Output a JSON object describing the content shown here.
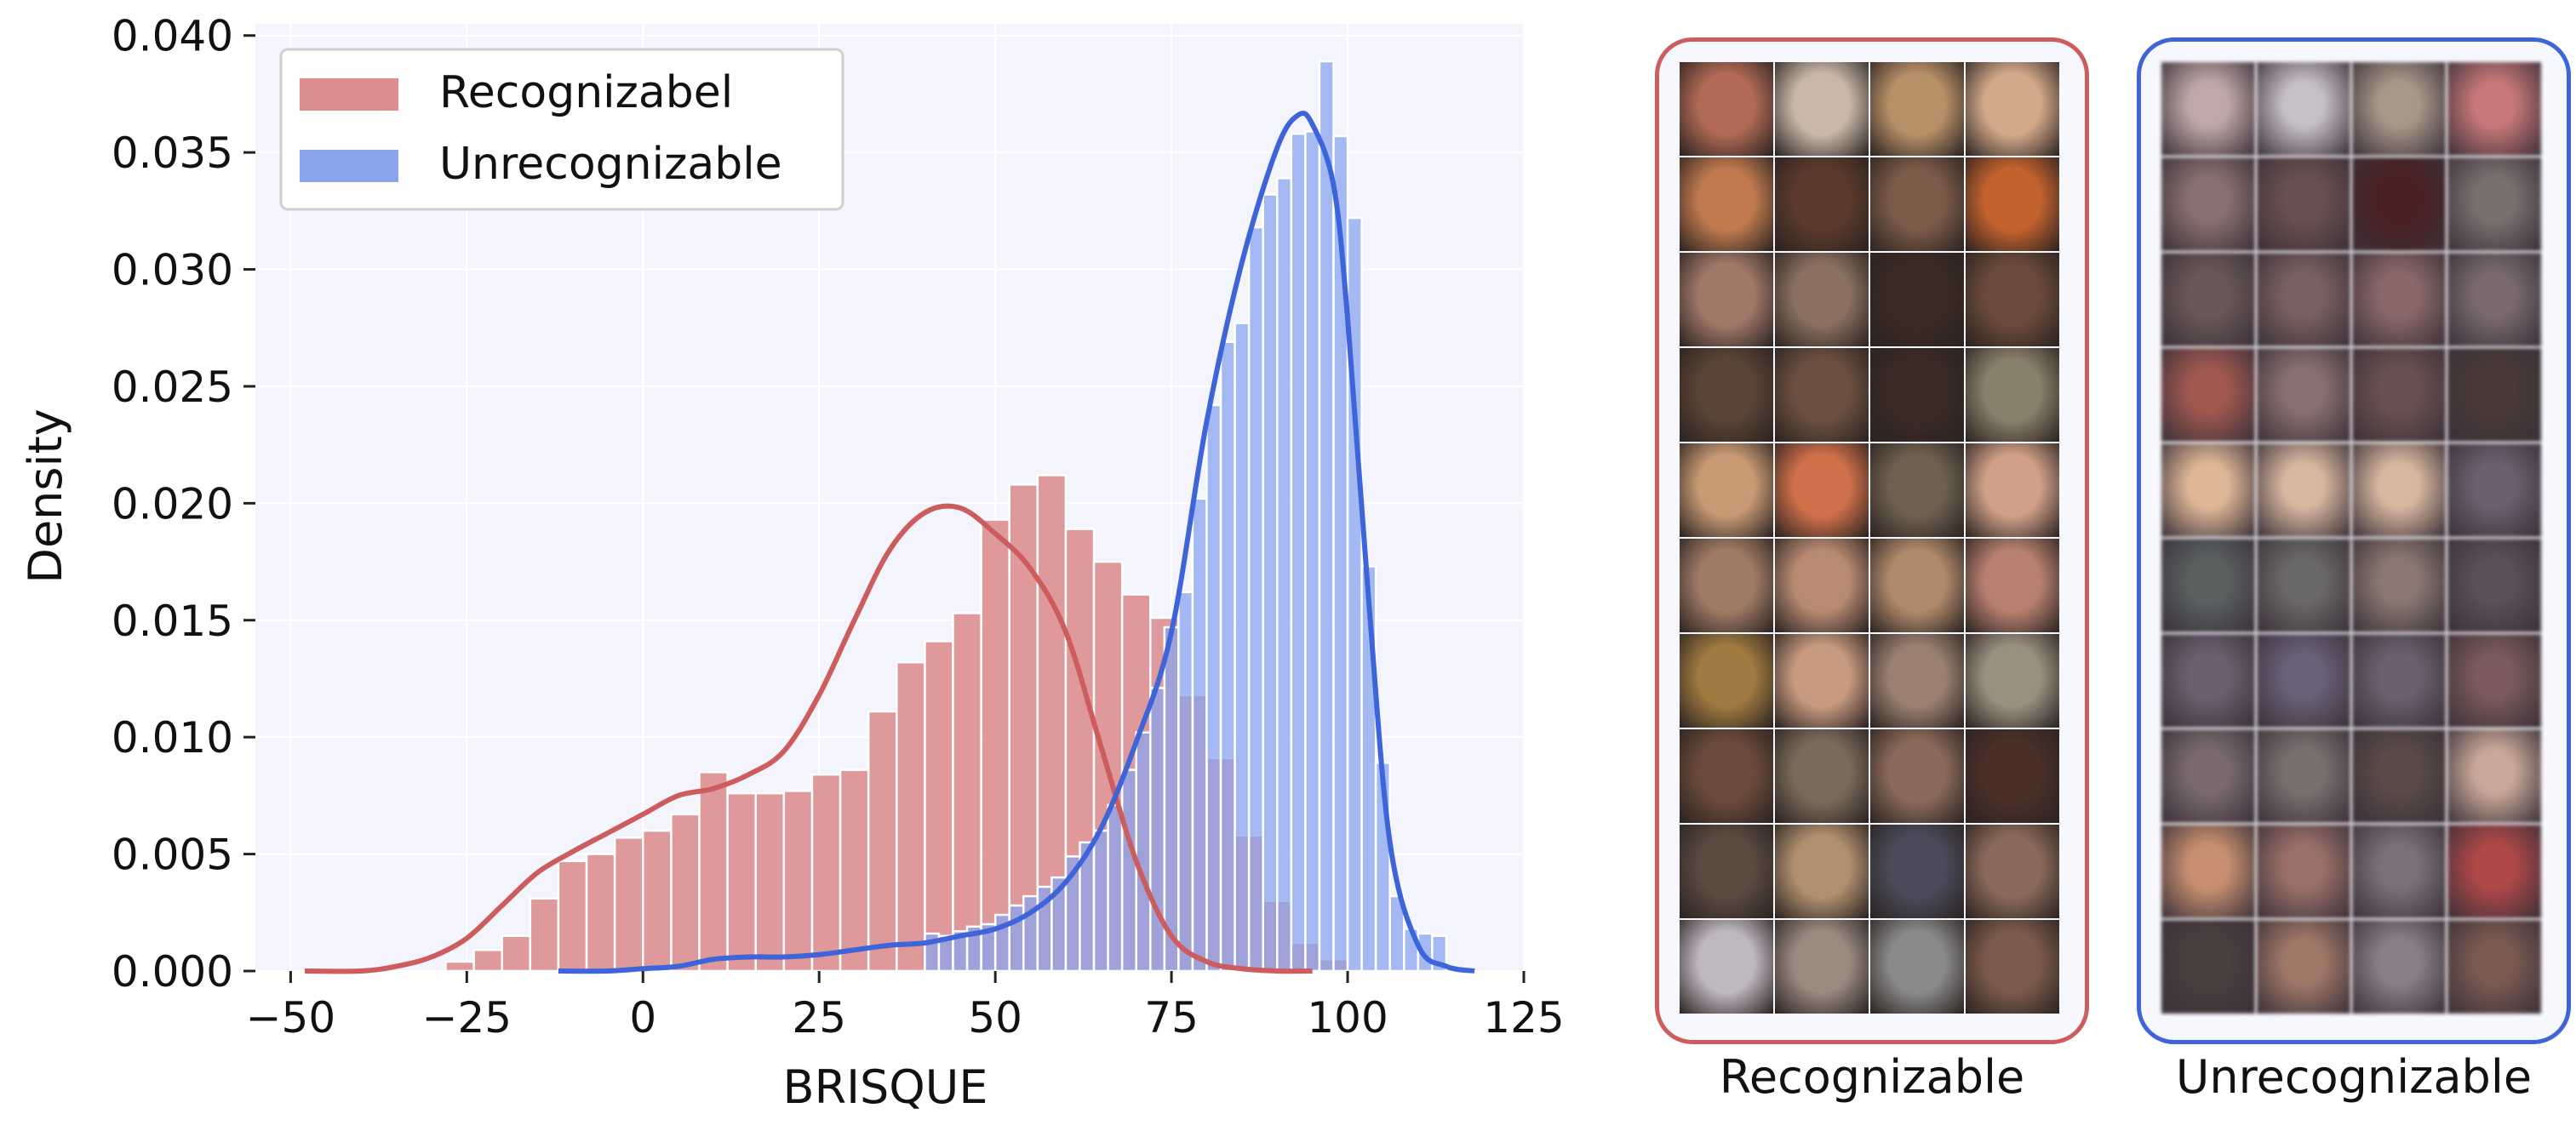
{
  "colors": {
    "recognizable": "#cd5c5c",
    "recognizable_bar": "#dd8f8f",
    "unrecognizable": "#3d65d9",
    "unrecognizable_bar": "#8aa4ee",
    "plot_bg": "#f4f5fc"
  },
  "chart_data": {
    "type": "histogram+kde",
    "xlabel": "BRISQUE",
    "ylabel": "Density",
    "xlim": [
      -55,
      125
    ],
    "ylim": [
      0,
      0.0405
    ],
    "xticks": [
      -50,
      -25,
      0,
      25,
      50,
      75,
      100,
      125
    ],
    "xtick_labels": [
      "−50",
      "−25",
      "0",
      "25",
      "50",
      "75",
      "100",
      "125"
    ],
    "yticks": [
      0,
      0.005,
      0.01,
      0.015,
      0.02,
      0.025,
      0.03,
      0.035,
      0.04
    ],
    "ytick_labels": [
      "0.000",
      "0.005",
      "0.010",
      "0.015",
      "0.020",
      "0.025",
      "0.030",
      "0.035",
      "0.040"
    ],
    "legend": {
      "position": "top-left",
      "entries": [
        "Recognizabel",
        "Unrecognizable"
      ]
    },
    "series": [
      {
        "name": "Recognizabel",
        "bin_width": 4,
        "bins_start": -28,
        "hist": [
          0.0004,
          0.0009,
          0.0015,
          0.0031,
          0.0047,
          0.005,
          0.0057,
          0.006,
          0.0067,
          0.0085,
          0.0076,
          0.0076,
          0.0077,
          0.0084,
          0.0086,
          0.0111,
          0.0132,
          0.0141,
          0.0153,
          0.0193,
          0.0208,
          0.0212,
          0.0189,
          0.0175,
          0.0161,
          0.0151,
          0.0118,
          0.0091,
          0.0058,
          0.003,
          0.0012,
          0.0005
        ],
        "kde_x": [
          -48,
          -40,
          -35,
          -30,
          -25,
          -20,
          -15,
          -10,
          -5,
          0,
          5,
          10,
          15,
          20,
          25,
          30,
          35,
          40,
          45,
          50,
          55,
          60,
          65,
          70,
          75,
          80,
          85,
          90,
          95
        ],
        "kde_y": [
          0.0,
          0.0,
          0.0002,
          0.0006,
          0.0014,
          0.0028,
          0.0042,
          0.0051,
          0.0059,
          0.0067,
          0.0075,
          0.0078,
          0.0084,
          0.0094,
          0.0118,
          0.015,
          0.018,
          0.0196,
          0.0198,
          0.0187,
          0.0172,
          0.0145,
          0.0096,
          0.0047,
          0.0015,
          0.0004,
          0.0001,
          0.0,
          0.0
        ]
      },
      {
        "name": "Unrecognizable",
        "bin_width": 2,
        "bins_start": 40,
        "hist": [
          0.0016,
          0.0015,
          0.0017,
          0.0019,
          0.002,
          0.0024,
          0.0028,
          0.0032,
          0.0036,
          0.004,
          0.0049,
          0.0055,
          0.006,
          0.0071,
          0.0086,
          0.0102,
          0.0121,
          0.0147,
          0.0162,
          0.0202,
          0.0242,
          0.0269,
          0.0277,
          0.0318,
          0.0332,
          0.0339,
          0.0358,
          0.0359,
          0.0389,
          0.0357,
          0.0322,
          0.0173,
          0.0089,
          0.0032,
          0.0018,
          0.0016,
          0.0015
        ],
        "kde_x": [
          -12,
          -5,
          0,
          5,
          10,
          15,
          20,
          25,
          30,
          35,
          40,
          45,
          50,
          55,
          60,
          65,
          70,
          75,
          80,
          85,
          90,
          93,
          95,
          98,
          100,
          103,
          106,
          110,
          114,
          118
        ],
        "kde_y": [
          0.0,
          0.0,
          0.0001,
          0.0002,
          0.0005,
          0.0006,
          0.0006,
          0.0007,
          0.0009,
          0.0011,
          0.0012,
          0.0015,
          0.0018,
          0.0025,
          0.0038,
          0.0061,
          0.0098,
          0.0145,
          0.0235,
          0.0303,
          0.0352,
          0.0366,
          0.0362,
          0.0336,
          0.0279,
          0.0158,
          0.0055,
          0.0011,
          0.0002,
          0.0
        ]
      }
    ]
  },
  "panels": {
    "recognizable": {
      "label": "Recognizable",
      "faces": [
        "#b06a55",
        "#c9b8a8",
        "#b89068",
        "#d4a98a",
        "#c07a4e",
        "#5b3a2c",
        "#7a5a48",
        "#c4622e",
        "#a07868",
        "#8a7060",
        "#3b2a22",
        "#6a4a3a",
        "#5a4436",
        "#6b5040",
        "#3a2a24",
        "#8a7f6a",
        "#c89a74",
        "#d0704a",
        "#6e6050",
        "#d0a088",
        "#a07b66",
        "#b88a72",
        "#b08a6c",
        "#b88070",
        "#a07a40",
        "#c89a80",
        "#9a8070",
        "#9a9080",
        "#6a4a3a",
        "#7a6a5a",
        "#8a6a5a",
        "#4a3028",
        "#5a4a40",
        "#b09070",
        "#4a4a5a",
        "#8a6a5a",
        "#c0b8c0",
        "#9a8a80",
        "#8a8a8a",
        "#7a5a4a"
      ]
    },
    "unrecognizable": {
      "label": "Unrecognizable",
      "faces": [
        "#c0a8a8",
        "#c8c0c8",
        "#a89888",
        "#c87878",
        "#8a7070",
        "#6a5050",
        "#4a2020",
        "#7a7070",
        "#6a5858",
        "#7a6060",
        "#8a6868",
        "#7a6a70",
        "#a05850",
        "#8a7070",
        "#6a5050",
        "#4a3a38",
        "#e0b898",
        "#d8b8a0",
        "#d8b8a0",
        "#6a6070",
        "#5a6060",
        "#6a6868",
        "#8a7870",
        "#5a5058",
        "#6a6070",
        "#6a6078",
        "#6a6070",
        "#7a5a5a",
        "#7a6a70",
        "#7a7070",
        "#5a4a48",
        "#c8a898",
        "#c89070",
        "#9a7068",
        "#7a7078",
        "#b04848",
        "#4a4040",
        "#a07868",
        "#8a8088",
        "#7a5a50"
      ]
    }
  }
}
